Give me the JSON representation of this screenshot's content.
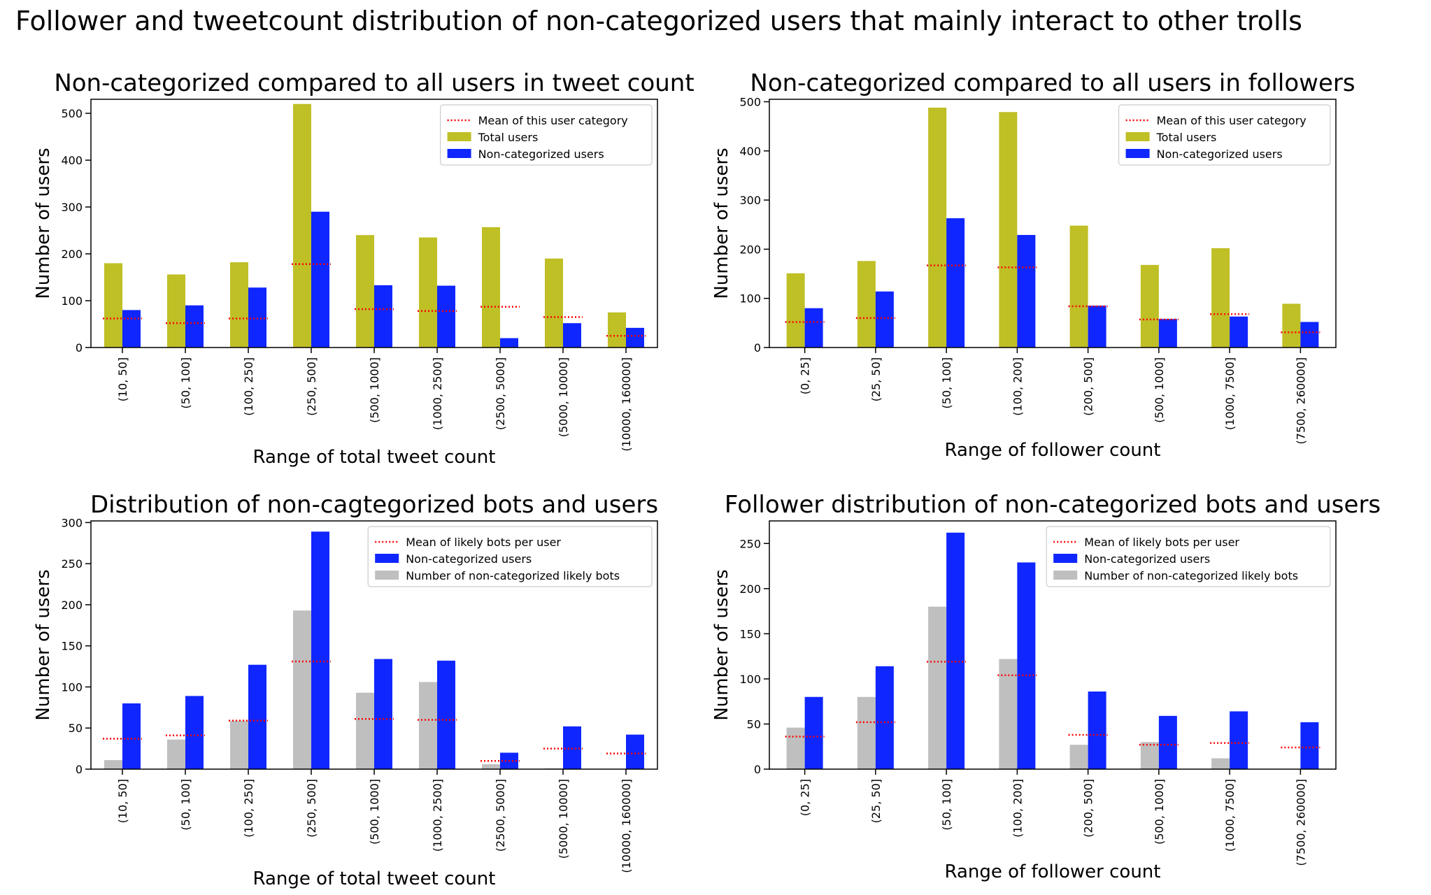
{
  "figure": {
    "suptitle": "Follower and tweetcount distribution of non-categorized users that mainly interact to other trolls"
  },
  "colors": {
    "total_users": "#bfbf26",
    "non_categorized": "#0f26ff",
    "likely_bots": "#bfbfbf",
    "mean_line": "#ff0000"
  },
  "chart_data": [
    {
      "type": "bar",
      "title": "Non-categorized compared to all users in tweet count",
      "xlabel": "Range of total tweet count",
      "ylabel": "Number of users",
      "ylim": [
        0,
        530
      ],
      "yticks": [
        0,
        100,
        200,
        300,
        400,
        500
      ],
      "categories": [
        "(10, 50]",
        "(50, 100]",
        "(100, 250]",
        "(250, 500]",
        "(500, 1000]",
        "(1000, 2500]",
        "(2500, 5000]",
        "(5000, 10000]",
        "(10000, 160000]"
      ],
      "series": [
        {
          "name": "Total users",
          "color": "#bfbf26",
          "values": [
            180,
            156,
            182,
            520,
            240,
            235,
            257,
            190,
            75
          ]
        },
        {
          "name": "Non-categorized users",
          "color": "#0f26ff",
          "values": [
            80,
            90,
            128,
            290,
            133,
            132,
            20,
            52,
            42
          ]
        }
      ],
      "mean_line": {
        "name": "Mean of this user category",
        "values": [
          62,
          52,
          62,
          178,
          82,
          78,
          87,
          65,
          25
        ]
      },
      "legend_position": "upper right"
    },
    {
      "type": "bar",
      "title": "Non-categorized compared to all users in followers",
      "xlabel": "Range of follower count",
      "ylabel": "Number of users",
      "ylim": [
        0,
        505
      ],
      "yticks": [
        0,
        100,
        200,
        300,
        400,
        500
      ],
      "categories": [
        "(0, 25]",
        "(25, 50]",
        "(50, 100]",
        "(100, 200]",
        "(200, 500]",
        "(500, 1000]",
        "(1000, 7500]",
        "(7500, 260000]"
      ],
      "series": [
        {
          "name": "Total users",
          "color": "#bfbf26",
          "values": [
            151,
            176,
            488,
            479,
            248,
            168,
            202,
            89
          ]
        },
        {
          "name": "Non-categorized users",
          "color": "#0f26ff",
          "values": [
            80,
            114,
            263,
            229,
            85,
            58,
            63,
            52
          ]
        }
      ],
      "mean_line": {
        "name": "Mean of this user category",
        "values": [
          52,
          60,
          167,
          163,
          84,
          57,
          68,
          31
        ]
      },
      "legend_position": "upper right"
    },
    {
      "type": "bar",
      "title": "Distribution of non-cagtegorized bots and users",
      "xlabel": "Range of total tweet count",
      "ylabel": "Number of users",
      "ylim": [
        0,
        302
      ],
      "yticks": [
        0,
        50,
        100,
        150,
        200,
        250,
        300
      ],
      "categories": [
        "(10, 50]",
        "(50, 100]",
        "(100, 250]",
        "(250, 500]",
        "(500, 1000]",
        "(1000, 2500]",
        "(2500, 5000]",
        "(5000, 10000]",
        "(10000, 160000]"
      ],
      "series": [
        {
          "name": "Number of non-categorized likely bots",
          "color": "#bfbfbf",
          "values": [
            11,
            36,
            59,
            193,
            93,
            106,
            6,
            1,
            0
          ]
        },
        {
          "name": "Non-categorized users",
          "color": "#0f26ff",
          "values": [
            80,
            89,
            127,
            289,
            134,
            132,
            20,
            52,
            42
          ]
        }
      ],
      "mean_line": {
        "name": "Mean of likely bots per user",
        "values": [
          37,
          41,
          59,
          131,
          61,
          60,
          10,
          25,
          19
        ]
      },
      "legend_position": "upper right"
    },
    {
      "type": "bar",
      "title": "Follower distribution of non-categorized bots and users",
      "xlabel": "Range of follower count",
      "ylabel": "Number of users",
      "ylim": [
        0,
        275
      ],
      "yticks": [
        0,
        50,
        100,
        150,
        200,
        250
      ],
      "categories": [
        "(0, 25]",
        "(25, 50]",
        "(50, 100]",
        "(100, 200]",
        "(200, 500]",
        "(500, 1000]",
        "(1000, 7500]",
        "(7500, 260000]"
      ],
      "series": [
        {
          "name": "Number of non-categorized likely bots",
          "color": "#bfbfbf",
          "values": [
            46,
            80,
            180,
            122,
            27,
            30,
            12,
            0
          ]
        },
        {
          "name": "Non-categorized users",
          "color": "#0f26ff",
          "values": [
            80,
            114,
            262,
            229,
            86,
            59,
            64,
            52
          ]
        }
      ],
      "mean_line": {
        "name": "Mean of likely bots per user",
        "values": [
          36,
          52,
          119,
          104,
          38,
          27,
          29,
          24
        ]
      },
      "legend_position": "upper right"
    }
  ]
}
